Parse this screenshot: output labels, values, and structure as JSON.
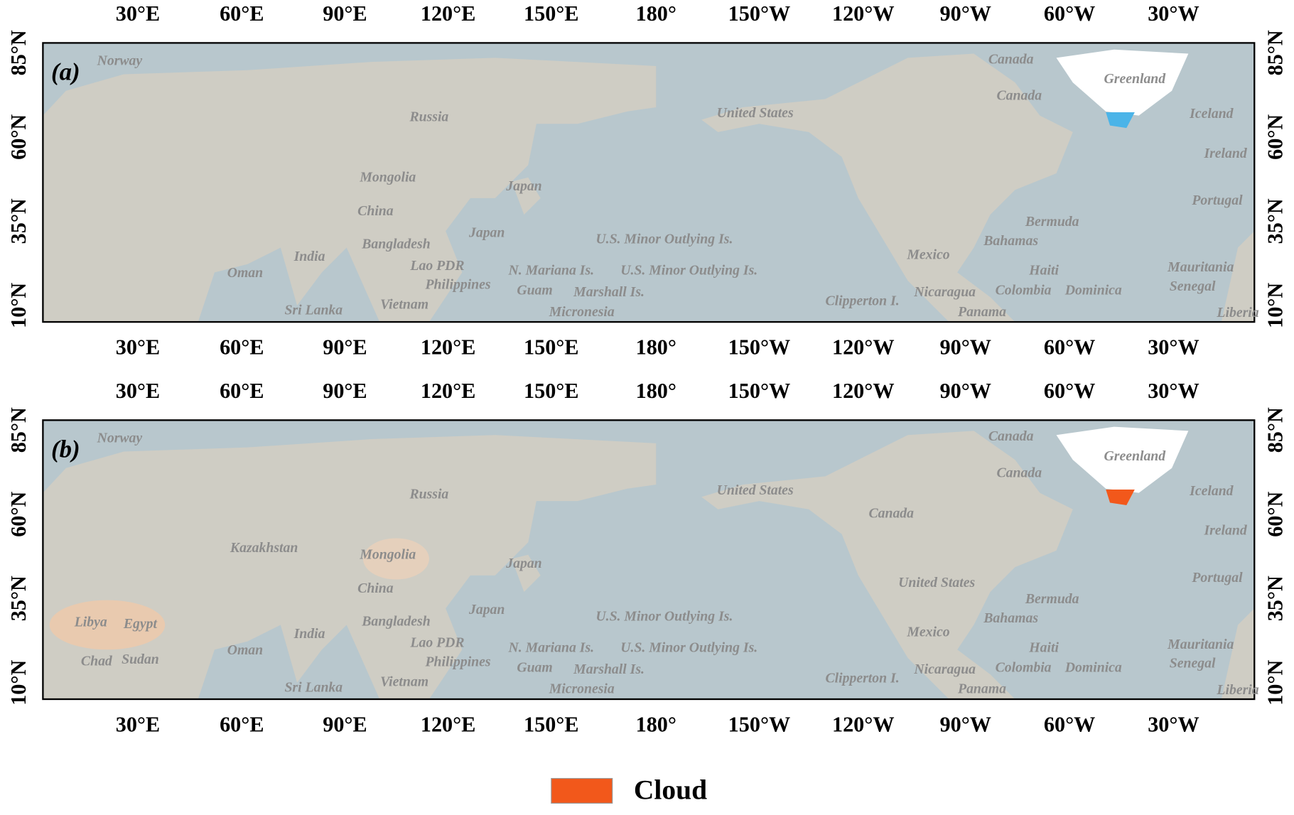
{
  "axes": {
    "lon_ticks": [
      "30°E",
      "60°E",
      "90°E",
      "120°E",
      "150°E",
      "180°",
      "150°W",
      "120°W",
      "90°W",
      "60°W",
      "30°W"
    ],
    "lat_ticks": [
      "85°N",
      "60°N",
      "35°N",
      "10°N"
    ]
  },
  "panels": [
    {
      "label": "(a)",
      "place_labels": [
        "Norway",
        "Canada",
        "Greenland",
        "Canada",
        "Iceland",
        "Russia",
        "United States",
        "Ireland",
        "Mongolia",
        "Japan",
        "Portugal",
        "China",
        "Bermuda",
        "India",
        "Oman",
        "Bangladesh",
        "U.S. Minor Outlying Is.",
        "Japan",
        "Mexico",
        "Bahamas",
        "Lao PDR",
        "N. Mariana Is.",
        "U.S. Minor Outlying Is.",
        "Haiti",
        "Guam",
        "Marshall Is.",
        "Philippines",
        "Clipperton I.",
        "Nicaragua",
        "Colombia",
        "Dominica",
        "Senegal",
        "Micronesia",
        "Sri Lanka",
        "Vietnam",
        "Panama",
        "Mauritania",
        "Liberia"
      ]
    },
    {
      "label": "(b)",
      "place_labels": [
        "Norway",
        "Canada",
        "Greenland",
        "Canada",
        "Iceland",
        "Russia",
        "United States",
        "Ireland",
        "Mongolia",
        "Japan",
        "Portugal",
        "China",
        "Bermuda",
        "India",
        "Oman",
        "Bangladesh",
        "U.S. Minor Outlying Is.",
        "Japan",
        "Mexico",
        "Bahamas",
        "Lao PDR",
        "N. Mariana Is.",
        "U.S. Minor Outlying Is.",
        "Haiti",
        "Guam",
        "Marshall Is.",
        "Philippines",
        "Clipperton I.",
        "Nicaragua",
        "Colombia",
        "Dominica",
        "Senegal",
        "Micronesia",
        "Sri Lanka",
        "Vietnam",
        "Panama",
        "Mauritania",
        "Liberia",
        "Canada",
        "United States",
        "Kazakhstan",
        "Libya",
        "Egypt",
        "Sudan",
        "Chad"
      ]
    }
  ],
  "legend": {
    "label": "Cloud",
    "color": "#f2581b"
  }
}
